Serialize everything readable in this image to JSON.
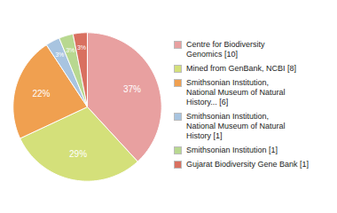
{
  "chart_data": {
    "type": "pie",
    "categories": [
      "Centre for Biodiversity\nGenomics [10]",
      "Mined from GenBank, NCBI [8]",
      "Smithsonian Institution,\nNational Museum of Natural\nHistory... [6]",
      "Smithsonian Institution,\nNational Museum of Natural\nHistory [1]",
      "Smithsonian Institution [1]",
      "Gujarat Biodiversity Gene Bank [1]"
    ],
    "values": [
      37,
      29,
      22,
      3,
      3,
      3
    ],
    "value_labels": [
      "37%",
      "29%",
      "22%",
      "3%",
      "3%",
      "3%"
    ],
    "colors": [
      "#e8a0a0",
      "#d4e07a",
      "#f0a050",
      "#a8c4e0",
      "#b8d890",
      "#d97060"
    ],
    "data_labels": true,
    "legend": "right"
  }
}
